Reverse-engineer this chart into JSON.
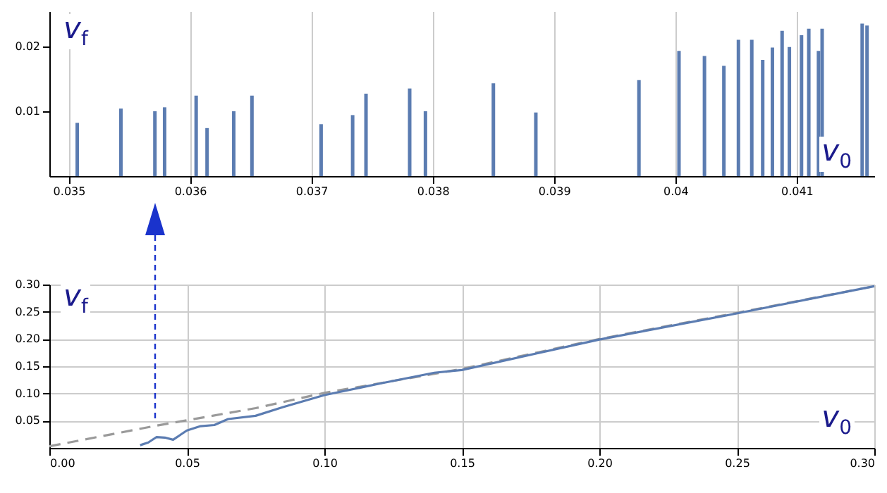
{
  "chart_data": [
    {
      "type": "bar",
      "xlabel": "v$_{0}$",
      "ylabel": "v$_{f}$",
      "color": "#5b7cb1",
      "grid": "x",
      "x": [
        0.03507,
        0.03543,
        0.03571,
        0.03579,
        0.03605,
        0.03614,
        0.03636,
        0.03651,
        0.03708,
        0.03734,
        0.03745,
        0.03781,
        0.03794,
        0.0385,
        0.03885,
        0.0397,
        0.04003,
        0.04024,
        0.0404,
        0.04052,
        0.04063,
        0.04072,
        0.0408,
        0.04088,
        0.04094,
        0.04104,
        0.0411,
        0.04118,
        0.04121,
        0.04154,
        0.04158
      ],
      "values": [
        0.0082,
        0.0104,
        0.01,
        0.0106,
        0.0124,
        0.0074,
        0.01,
        0.0124,
        0.008,
        0.0094,
        0.0127,
        0.0135,
        0.01,
        0.0143,
        0.0098,
        0.0148,
        0.0193,
        0.0185,
        0.017,
        0.021,
        0.021,
        0.0179,
        0.0198,
        0.0224,
        0.0199,
        0.0217,
        0.0227,
        0.0193,
        0.0227,
        0.0235,
        0.0232
      ],
      "xlim": [
        0.03484,
        0.04164
      ],
      "xticks": [
        0.035,
        0.036,
        0.037,
        0.038,
        0.039,
        0.04,
        0.041
      ],
      "ylim": [
        0,
        0.0254
      ],
      "yticks": [
        0.01,
        0.02
      ]
    },
    {
      "type": "line",
      "xlabel": "v$_{0}$",
      "ylabel": "v$_{f}$",
      "grid": true,
      "series": [
        {
          "color": "#9a9a9a",
          "line_style": "dashed",
          "x": [
            0,
            0.039,
            0.075,
            0.1,
            0.15,
            0.2,
            0.25,
            0.3
          ],
          "values": [
            0.003,
            0.041,
            0.073,
            0.101,
            0.145,
            0.2,
            0.248,
            0.297
          ]
        },
        {
          "color": "#5b7cb1",
          "line_style": "solid",
          "x": [
            0.033,
            0.036,
            0.039,
            0.042,
            0.045,
            0.05,
            0.055,
            0.06,
            0.065,
            0.075,
            0.085,
            0.1,
            0.12,
            0.14,
            0.15,
            0.2,
            0.25,
            0.3
          ],
          "values": [
            0.005,
            0.01,
            0.02,
            0.019,
            0.015,
            0.032,
            0.04,
            0.042,
            0.053,
            0.059,
            0.075,
            0.097,
            0.118,
            0.138,
            0.143,
            0.199,
            0.247,
            0.297
          ]
        }
      ],
      "xlim": [
        0,
        0.3
      ],
      "xticks": [
        {
          "value": 0,
          "label": "0.00"
        },
        {
          "value": 0.05,
          "label": "0.05"
        },
        {
          "value": 0.1,
          "label": "0.10"
        },
        {
          "value": 0.15,
          "label": "0.15"
        },
        {
          "value": 0.2,
          "label": "0.20"
        },
        {
          "value": 0.25,
          "label": "0.25"
        },
        {
          "value": 0.3,
          "label": "0.30"
        }
      ],
      "ylim": [
        0,
        0.3
      ],
      "yticks": [
        {
          "value": 0.05,
          "label": "0.05"
        },
        {
          "value": 0.1,
          "label": "0.10"
        },
        {
          "value": 0.15,
          "label": "0.15"
        },
        {
          "value": 0.2,
          "label": "0.20"
        },
        {
          "value": 0.25,
          "label": "0.25"
        },
        {
          "value": 0.3,
          "label": "0.30"
        }
      ]
    }
  ]
}
